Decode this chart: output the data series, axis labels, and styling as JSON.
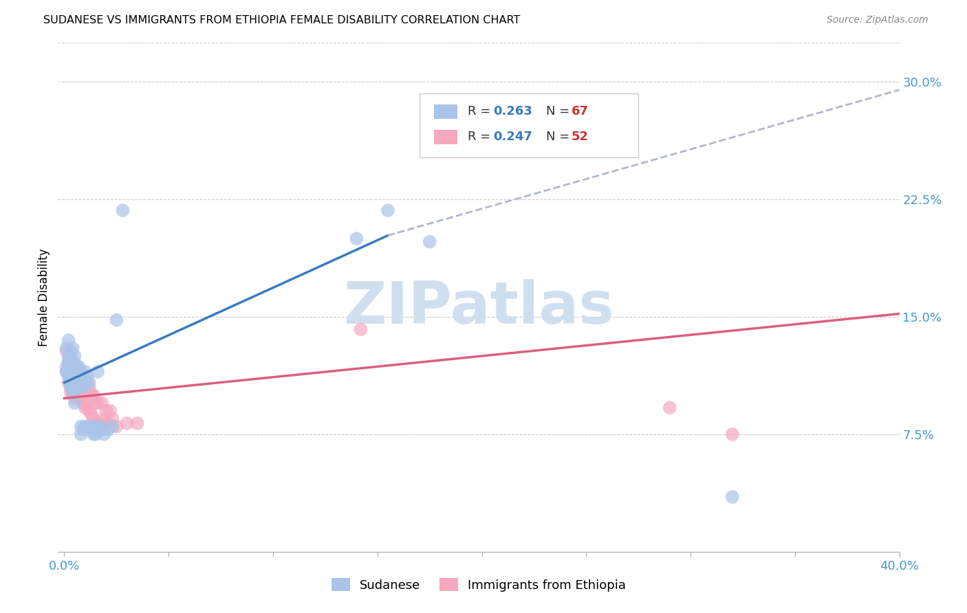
{
  "title": "SUDANESE VS IMMIGRANTS FROM ETHIOPIA FEMALE DISABILITY CORRELATION CHART",
  "source": "Source: ZipAtlas.com",
  "ylabel": "Female Disability",
  "xlim": [
    -0.003,
    0.4
  ],
  "ylim": [
    0.0,
    0.325
  ],
  "yticks": [
    0.075,
    0.15,
    0.225,
    0.3
  ],
  "ytick_labels": [
    "7.5%",
    "15.0%",
    "22.5%",
    "30.0%"
  ],
  "xticks": [
    0.0,
    0.05,
    0.1,
    0.15,
    0.2,
    0.25,
    0.3,
    0.35,
    0.4
  ],
  "sudanese_R": 0.263,
  "sudanese_N": 67,
  "ethiopia_R": 0.247,
  "ethiopia_N": 52,
  "sudanese_color": "#aac4e8",
  "ethiopia_color": "#f5a8be",
  "sudanese_line_color": "#3a7abf",
  "ethiopia_line_color": "#d96080",
  "trend_line_color": "#b0b8c8",
  "watermark_color": "#d0dff0",
  "legend_R_color": "#3a7abf",
  "legend_N_color": "#cc3333",
  "sudanese_x": [
    0.001,
    0.001,
    0.001,
    0.002,
    0.002,
    0.002,
    0.002,
    0.002,
    0.003,
    0.003,
    0.003,
    0.003,
    0.003,
    0.003,
    0.003,
    0.004,
    0.004,
    0.004,
    0.004,
    0.004,
    0.004,
    0.004,
    0.004,
    0.005,
    0.005,
    0.005,
    0.005,
    0.005,
    0.005,
    0.005,
    0.006,
    0.006,
    0.006,
    0.006,
    0.007,
    0.007,
    0.007,
    0.008,
    0.008,
    0.008,
    0.008,
    0.009,
    0.009,
    0.009,
    0.01,
    0.01,
    0.01,
    0.011,
    0.011,
    0.012,
    0.012,
    0.013,
    0.014,
    0.015,
    0.015,
    0.016,
    0.017,
    0.018,
    0.019,
    0.021,
    0.023,
    0.025,
    0.028,
    0.14,
    0.155,
    0.175,
    0.32
  ],
  "sudanese_y": [
    0.13,
    0.118,
    0.115,
    0.135,
    0.125,
    0.122,
    0.115,
    0.112,
    0.128,
    0.12,
    0.118,
    0.115,
    0.112,
    0.108,
    0.105,
    0.13,
    0.122,
    0.118,
    0.115,
    0.112,
    0.108,
    0.105,
    0.102,
    0.125,
    0.12,
    0.115,
    0.11,
    0.108,
    0.105,
    0.095,
    0.118,
    0.115,
    0.11,
    0.105,
    0.118,
    0.112,
    0.105,
    0.115,
    0.108,
    0.08,
    0.075,
    0.11,
    0.105,
    0.078,
    0.115,
    0.108,
    0.08,
    0.112,
    0.08,
    0.108,
    0.078,
    0.08,
    0.075,
    0.08,
    0.075,
    0.115,
    0.08,
    0.078,
    0.075,
    0.078,
    0.08,
    0.148,
    0.218,
    0.2,
    0.218,
    0.198,
    0.035
  ],
  "ethiopia_x": [
    0.001,
    0.001,
    0.002,
    0.002,
    0.002,
    0.003,
    0.003,
    0.003,
    0.003,
    0.004,
    0.004,
    0.004,
    0.004,
    0.005,
    0.005,
    0.005,
    0.005,
    0.006,
    0.006,
    0.006,
    0.007,
    0.007,
    0.008,
    0.008,
    0.009,
    0.009,
    0.01,
    0.01,
    0.011,
    0.011,
    0.012,
    0.012,
    0.013,
    0.013,
    0.014,
    0.014,
    0.015,
    0.015,
    0.016,
    0.017,
    0.018,
    0.019,
    0.02,
    0.021,
    0.022,
    0.023,
    0.025,
    0.03,
    0.035,
    0.142,
    0.29,
    0.32
  ],
  "ethiopia_y": [
    0.128,
    0.115,
    0.12,
    0.115,
    0.108,
    0.118,
    0.112,
    0.108,
    0.102,
    0.115,
    0.112,
    0.108,
    0.1,
    0.118,
    0.112,
    0.105,
    0.098,
    0.115,
    0.108,
    0.1,
    0.112,
    0.105,
    0.108,
    0.098,
    0.105,
    0.095,
    0.105,
    0.092,
    0.108,
    0.095,
    0.105,
    0.09,
    0.1,
    0.088,
    0.1,
    0.085,
    0.095,
    0.082,
    0.095,
    0.082,
    0.095,
    0.085,
    0.09,
    0.082,
    0.09,
    0.085,
    0.08,
    0.082,
    0.082,
    0.142,
    0.092,
    0.075
  ],
  "sud_line_x_start": 0.0,
  "sud_line_x_solid_end": 0.155,
  "sud_line_x_dash_end": 0.4,
  "sud_line_y_start": 0.108,
  "sud_line_y_solid_end": 0.202,
  "sud_line_y_dash_end": 0.295,
  "eth_line_x_start": 0.0,
  "eth_line_x_end": 0.4,
  "eth_line_y_start": 0.098,
  "eth_line_y_end": 0.152
}
